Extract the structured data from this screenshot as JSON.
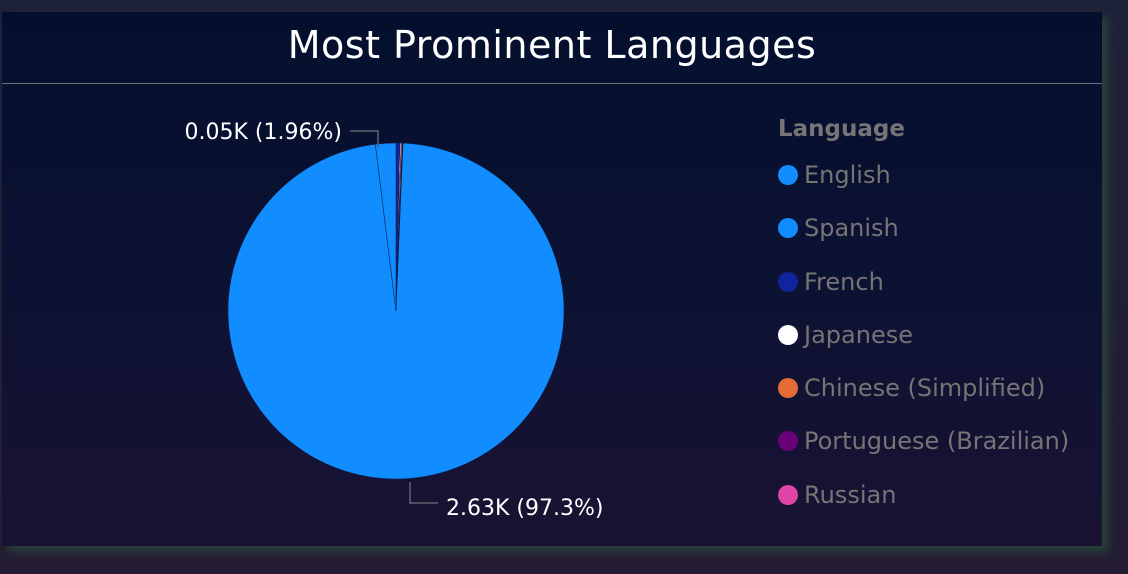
{
  "chart_data": {
    "type": "pie",
    "title": "Most Prominent Languages",
    "legend_title": "Language",
    "legend_position": "right",
    "slices": [
      {
        "label": "English",
        "value": 2630,
        "display": "2.63K (97.3%)",
        "color": "#118dff"
      },
      {
        "label": "Spanish",
        "value": 53,
        "display": "0.05K (1.96%)",
        "color": "#118dff"
      },
      {
        "label": "French",
        "value": 10,
        "display": "",
        "color": "#12239e"
      },
      {
        "label": "Japanese",
        "value": 3,
        "display": "",
        "color": "#ffffff"
      },
      {
        "label": "Chinese (Simplified)",
        "value": 3,
        "display": "",
        "color": "#e66c37"
      },
      {
        "label": "Portuguese (Brazilian)",
        "value": 1,
        "display": "",
        "color": "#6b007b"
      },
      {
        "label": "Russian",
        "value": 1,
        "display": "",
        "color": "#e044a7"
      }
    ]
  },
  "colors": {
    "background": "#040f2e",
    "title_text": "#ffffff",
    "legend_text": "#767474",
    "data_label_text": "#ffffff",
    "leader_line": "#5f636f"
  }
}
